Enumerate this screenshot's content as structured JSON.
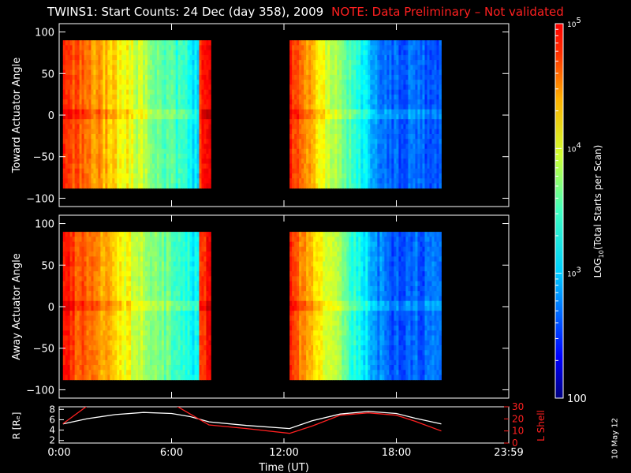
{
  "title": {
    "main": "TWINS1: Start Counts: 24 Dec (day 358), 2009",
    "note": "NOTE: Data Preliminary – Not validated"
  },
  "footer_stamp": "10 May 12",
  "colors": {
    "background": "#000000",
    "axes": "#ffffff",
    "note": "#ff2020",
    "r_line": "#ffffff",
    "lshell_line": "#ff2020"
  },
  "chart_data": [
    {
      "type": "heatmap",
      "ylabel": "Toward Actuator Angle",
      "xlim": [
        0,
        24
      ],
      "ylim": [
        -110,
        110
      ],
      "data_ylim": [
        -88,
        90
      ],
      "yticks": [
        100,
        50,
        0,
        -50,
        -100
      ],
      "ytick_labels": [
        "100",
        "50",
        "0",
        "−50",
        "−100"
      ],
      "data_segments": [
        [
          0.2,
          8.1
        ],
        [
          12.3,
          20.4
        ]
      ],
      "colorscale": "log10"
    },
    {
      "type": "heatmap",
      "ylabel": "Away Actuator Angle",
      "xlim": [
        0,
        24
      ],
      "ylim": [
        -110,
        110
      ],
      "data_ylim": [
        -88,
        90
      ],
      "yticks": [
        100,
        50,
        0,
        -50,
        -100
      ],
      "ytick_labels": [
        "100",
        "50",
        "0",
        "−50",
        "−100"
      ],
      "data_segments": [
        [
          0.2,
          8.1
        ],
        [
          12.3,
          20.4
        ]
      ],
      "colorscale": "log10"
    },
    {
      "type": "line",
      "ylabel": "R [Rₑ]",
      "y2label": "L Shell",
      "xlabel": "Time (UT)",
      "xlim": [
        0,
        24
      ],
      "ylim": [
        1.5,
        8.5
      ],
      "y2lim": [
        0,
        30
      ],
      "yticks": [
        2,
        4,
        6,
        8
      ],
      "y2ticks": [
        0,
        10,
        20,
        30
      ],
      "xticks": [
        0,
        6,
        12,
        18,
        24
      ],
      "xtick_labels": [
        "0:00",
        "6:00",
        "12:00",
        "18:00",
        "23:59"
      ],
      "series": [
        {
          "axis": "left",
          "x": [
            0.2,
            1.5,
            3,
            4.5,
            6,
            7,
            8,
            10,
            12.3,
            13.5,
            15,
            16.5,
            18,
            19,
            20.4
          ],
          "y": [
            5.2,
            6.2,
            7.0,
            7.4,
            7.2,
            6.6,
            5.6,
            4.9,
            4.3,
            5.8,
            7.1,
            7.6,
            7.2,
            6.3,
            5.2
          ]
        },
        {
          "axis": "right",
          "x": [
            0.2,
            1.7,
            4.5,
            6,
            8,
            10,
            12.3,
            13.5,
            15,
            16.5,
            18,
            19,
            20.4
          ],
          "y": [
            16,
            33,
            33,
            33,
            15,
            12,
            8,
            14,
            23,
            25,
            23,
            18,
            10
          ]
        }
      ]
    }
  ],
  "colorbar": {
    "label_prefix": "LOG",
    "label_sub": "10",
    "label_suffix": "(Total Starts per Scan)",
    "ticks": [
      {
        "value": 100000,
        "base": "10",
        "exp": "5"
      },
      {
        "value": 10000,
        "base": "10",
        "exp": "4"
      },
      {
        "value": 1000,
        "base": "10",
        "exp": "3"
      },
      {
        "value": 100,
        "base": "100",
        "exp": ""
      }
    ],
    "range": [
      100,
      100000
    ]
  }
}
